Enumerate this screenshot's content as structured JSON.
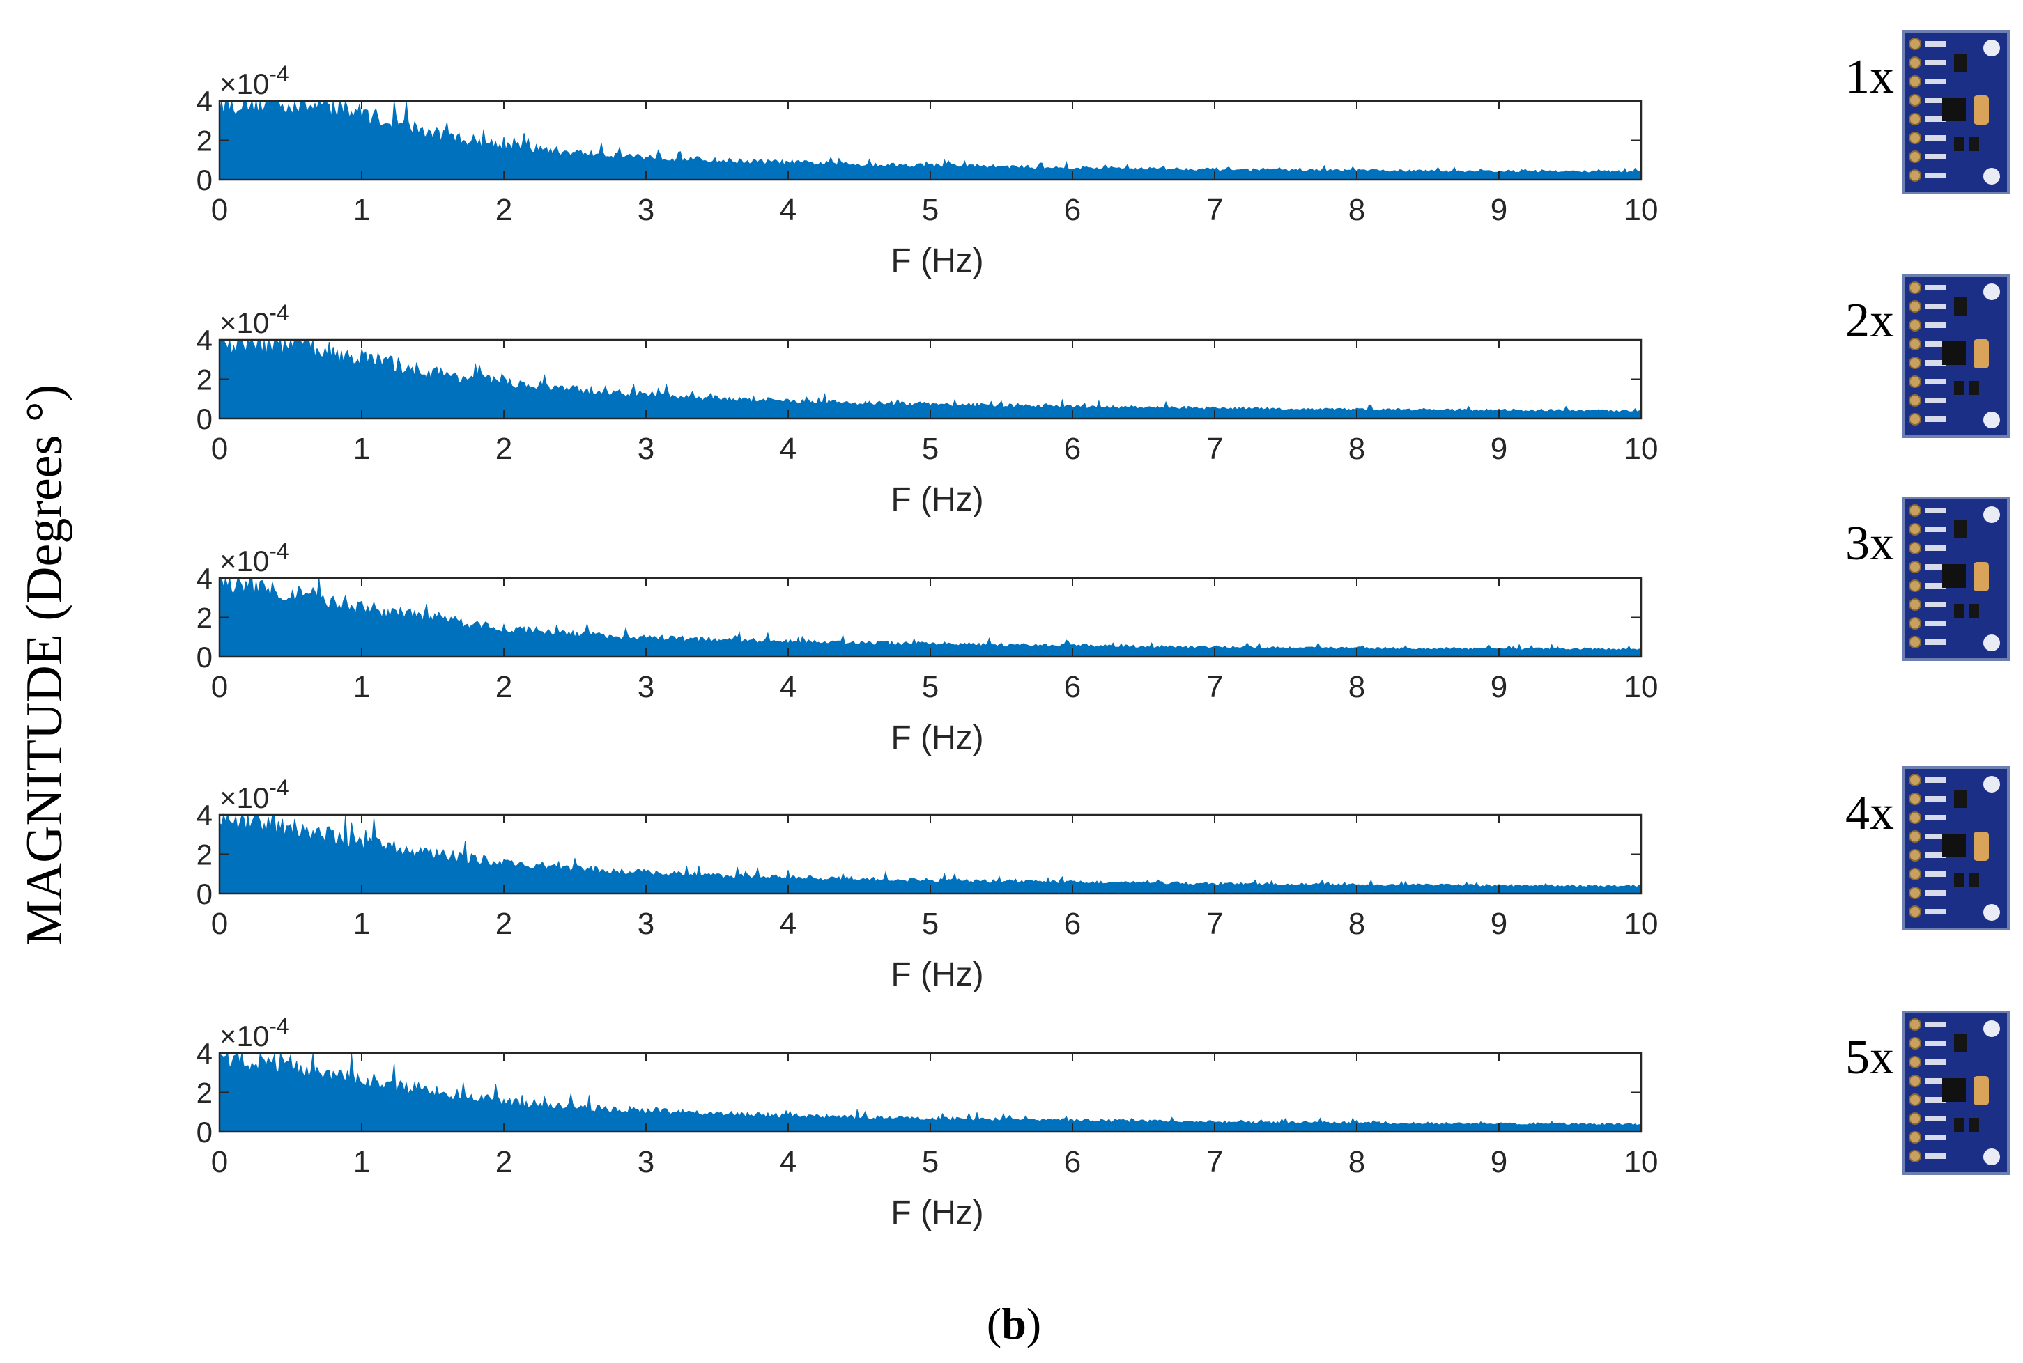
{
  "figure": {
    "ylabel": "MAGNITUDE (Degrees °)",
    "caption_open": "(",
    "caption_letter": "b",
    "caption_close": ")",
    "sensor_icon": "mpu6050-board-icon",
    "colors": {
      "series": "#0072BD",
      "axes": "#262626",
      "board": "#1c2f86"
    }
  },
  "chart_data": [
    {
      "type": "area",
      "sensor_label": "1x",
      "xlabel": "F (Hz)",
      "ylabel": "",
      "scale_exponent_base": "×10",
      "scale_exponent_power": "-4",
      "xlim": [
        0,
        10
      ],
      "ylim": [
        0,
        4
      ],
      "xticks": [
        "0",
        "1",
        "2",
        "3",
        "4",
        "5",
        "6",
        "7",
        "8",
        "9",
        "10"
      ],
      "yticks": [
        "0",
        "2",
        "4"
      ],
      "series": [
        {
          "x": [
            0,
            0.5,
            1,
            1.5,
            2,
            2.5,
            3,
            3.5,
            4,
            4.5,
            5,
            5.5,
            6,
            6.5,
            7,
            7.5,
            8,
            8.5,
            9,
            9.5,
            10
          ],
          "values": [
            4,
            4,
            3.5,
            2.4,
            1.8,
            1.4,
            1.2,
            1.0,
            0.9,
            0.8,
            0.75,
            0.68,
            0.62,
            0.58,
            0.54,
            0.5,
            0.48,
            0.45,
            0.44,
            0.43,
            0.42
          ]
        }
      ]
    },
    {
      "type": "area",
      "sensor_label": "2x",
      "xlabel": "F (Hz)",
      "ylabel": "",
      "scale_exponent_base": "×10",
      "scale_exponent_power": "-4",
      "xlim": [
        0,
        10
      ],
      "ylim": [
        0,
        4
      ],
      "xticks": [
        "0",
        "1",
        "2",
        "3",
        "4",
        "5",
        "6",
        "7",
        "8",
        "9",
        "10"
      ],
      "yticks": [
        "0",
        "2",
        "4"
      ],
      "series": [
        {
          "x": [
            0,
            0.5,
            1,
            1.5,
            2,
            2.5,
            3,
            3.5,
            4,
            4.5,
            5,
            5.5,
            6,
            6.5,
            7,
            7.5,
            8,
            8.5,
            9,
            9.5,
            10
          ],
          "values": [
            4,
            3.9,
            3.2,
            2.4,
            1.9,
            1.5,
            1.25,
            1.05,
            0.92,
            0.82,
            0.75,
            0.68,
            0.62,
            0.58,
            0.54,
            0.5,
            0.48,
            0.45,
            0.44,
            0.42,
            0.4
          ]
        }
      ]
    },
    {
      "type": "area",
      "sensor_label": "3x",
      "xlabel": "F (Hz)",
      "ylabel": "",
      "scale_exponent_base": "×10",
      "scale_exponent_power": "-4",
      "xlim": [
        0,
        10
      ],
      "ylim": [
        0,
        4
      ],
      "xticks": [
        "0",
        "1",
        "2",
        "3",
        "4",
        "5",
        "6",
        "7",
        "8",
        "9",
        "10"
      ],
      "yticks": [
        "0",
        "2",
        "4"
      ],
      "series": [
        {
          "x": [
            0,
            0.5,
            1,
            1.5,
            2,
            2.5,
            3,
            3.5,
            4,
            4.5,
            5,
            5.5,
            6,
            6.5,
            7,
            7.5,
            8,
            8.5,
            9,
            9.5,
            10
          ],
          "values": [
            4,
            3.4,
            2.6,
            2.0,
            1.5,
            1.2,
            1.0,
            0.9,
            0.8,
            0.74,
            0.68,
            0.62,
            0.58,
            0.54,
            0.5,
            0.48,
            0.45,
            0.43,
            0.42,
            0.41,
            0.4
          ]
        }
      ]
    },
    {
      "type": "area",
      "sensor_label": "4x",
      "xlabel": "F (Hz)",
      "ylabel": "",
      "scale_exponent_base": "×10",
      "scale_exponent_power": "-4",
      "xlim": [
        0,
        10
      ],
      "ylim": [
        0,
        4
      ],
      "xticks": [
        "0",
        "1",
        "2",
        "3",
        "4",
        "5",
        "6",
        "7",
        "8",
        "9",
        "10"
      ],
      "yticks": [
        "0",
        "2",
        "4"
      ],
      "series": [
        {
          "x": [
            0,
            0.5,
            1,
            1.5,
            2,
            2.5,
            3,
            3.5,
            4,
            4.5,
            5,
            5.5,
            6,
            6.5,
            7,
            7.5,
            8,
            8.5,
            9,
            9.5,
            10
          ],
          "values": [
            4,
            3.5,
            2.7,
            2.1,
            1.6,
            1.3,
            1.1,
            0.95,
            0.85,
            0.76,
            0.7,
            0.64,
            0.6,
            0.56,
            0.52,
            0.49,
            0.46,
            0.44,
            0.42,
            0.41,
            0.4
          ]
        }
      ]
    },
    {
      "type": "area",
      "sensor_label": "5x",
      "xlabel": "F (Hz)",
      "ylabel": "",
      "scale_exponent_base": "×10",
      "scale_exponent_power": "-4",
      "xlim": [
        0,
        10
      ],
      "ylim": [
        0,
        4
      ],
      "xticks": [
        "0",
        "1",
        "2",
        "3",
        "4",
        "5",
        "6",
        "7",
        "8",
        "9",
        "10"
      ],
      "yticks": [
        "0",
        "2",
        "4"
      ],
      "series": [
        {
          "x": [
            0,
            0.5,
            1,
            1.5,
            2,
            2.5,
            3,
            3.5,
            4,
            4.5,
            5,
            5.5,
            6,
            6.5,
            7,
            7.5,
            8,
            8.5,
            9,
            9.5,
            10
          ],
          "values": [
            4,
            3.5,
            2.8,
            2.1,
            1.6,
            1.3,
            1.1,
            0.95,
            0.85,
            0.76,
            0.7,
            0.64,
            0.6,
            0.56,
            0.52,
            0.49,
            0.46,
            0.44,
            0.42,
            0.41,
            0.4
          ]
        }
      ]
    }
  ]
}
